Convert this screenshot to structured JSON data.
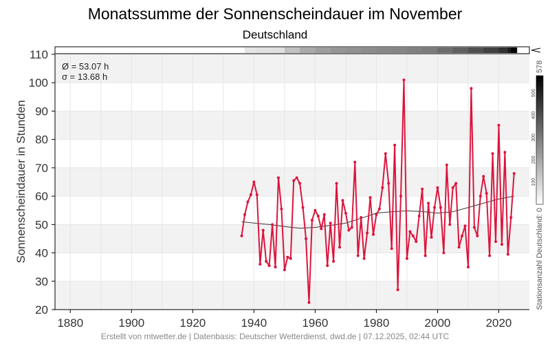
{
  "title": "Monatssumme der Sonnenscheindauer im November",
  "subtitle": "Deutschland",
  "footer": "Erstellt von mtwetter.de | Datenbasis: Deutscher Wetterdienst, dwd.de | 07.12.2025, 02:44 UTC",
  "stats": {
    "mean": "Ø = 53.07 h",
    "sd": "σ = 13.68 h"
  },
  "colors": {
    "series": "#dc143c",
    "trend": "#333333",
    "band": "#f2f2f2",
    "grid": "#e6e6e6"
  },
  "station_bar": {
    "label": "Stationsanzahl Deutschland: 0",
    "max_label": "578",
    "ticks": [
      100,
      200,
      300,
      400,
      500
    ],
    "range": [
      0,
      578
    ],
    "counts": [
      [
        1937,
        60
      ],
      [
        1941,
        65
      ],
      [
        1946,
        70
      ],
      [
        1950,
        140
      ],
      [
        1955,
        190
      ],
      [
        1960,
        220
      ],
      [
        1965,
        240
      ],
      [
        1970,
        250
      ],
      [
        1975,
        260
      ],
      [
        1980,
        270
      ],
      [
        1985,
        275
      ],
      [
        1990,
        285
      ],
      [
        1995,
        300
      ],
      [
        2000,
        330
      ],
      [
        2005,
        360
      ],
      [
        2010,
        400
      ],
      [
        2015,
        430
      ],
      [
        2020,
        470
      ],
      [
        2023,
        520
      ],
      [
        2024,
        578
      ],
      [
        2025,
        578
      ]
    ]
  },
  "chart_data": {
    "type": "line",
    "ylabel": "Sonnenscheindauer in Stunden",
    "xlim": [
      1875,
      2030
    ],
    "ylim": [
      20,
      110
    ],
    "x_ticks": [
      1880,
      1900,
      1920,
      1940,
      1960,
      1980,
      2000,
      2020
    ],
    "y_ticks": [
      20,
      30,
      40,
      50,
      60,
      70,
      80,
      90,
      100,
      110
    ],
    "grid": true,
    "series": [
      {
        "x": [
          1936,
          1937,
          1938,
          1939,
          1940,
          1941,
          1942,
          1943,
          1944,
          1945,
          1946,
          1947,
          1948,
          1949,
          1950,
          1951,
          1952,
          1953,
          1954,
          1955,
          1956,
          1957,
          1958,
          1959,
          1960,
          1961,
          1962,
          1963,
          1964,
          1965,
          1966,
          1967,
          1968,
          1969,
          1970,
          1971,
          1972,
          1973,
          1974,
          1975,
          1976,
          1977,
          1978,
          1979,
          1980,
          1981,
          1982,
          1983,
          1984,
          1985,
          1986,
          1987,
          1988,
          1989,
          1990,
          1991,
          1992,
          1993,
          1994,
          1995,
          1996,
          1997,
          1998,
          1999,
          2000,
          2001,
          2002,
          2003,
          2004,
          2005,
          2006,
          2007,
          2008,
          2009,
          2010,
          2011,
          2012,
          2013,
          2014,
          2015,
          2016,
          2017,
          2018,
          2019,
          2020,
          2021,
          2022,
          2023,
          2024,
          2025
        ],
        "values": [
          46,
          53.5,
          58,
          60.5,
          65,
          60.5,
          36,
          48,
          37,
          35.5,
          50,
          35,
          66.5,
          55.5,
          34,
          38.5,
          38,
          65.5,
          66.5,
          64.5,
          56,
          45,
          22.5,
          51.5,
          55,
          53,
          48.5,
          53.5,
          35.5,
          50.5,
          37,
          64.5,
          42,
          58.5,
          54,
          48,
          49,
          72,
          39,
          52.5,
          38,
          47,
          59.5,
          46.5,
          53.5,
          55.5,
          63,
          75,
          64.5,
          41.5,
          78,
          27,
          60,
          101,
          38,
          47.5,
          46,
          44,
          53,
          62.5,
          39,
          57.5,
          45.5,
          56,
          63,
          56,
          40,
          71,
          50,
          63,
          64.5,
          42,
          46,
          49.5,
          35,
          98,
          49,
          46,
          60,
          67,
          61,
          39,
          75,
          44,
          85,
          43,
          75.5,
          39.5,
          52.5,
          68
        ]
      },
      {
        "name": "Trend",
        "x": [
          1936,
          1940,
          1945,
          1950,
          1955,
          1960,
          1965,
          1970,
          1975,
          1980,
          1985,
          1990,
          1995,
          2000,
          2005,
          2010,
          2015,
          2020,
          2025
        ],
        "values": [
          51,
          50.5,
          50,
          49.3,
          48.7,
          49,
          49.7,
          50.5,
          52.2,
          54,
          54.5,
          54.8,
          54.6,
          54,
          54.5,
          56,
          57.5,
          59,
          60
        ]
      }
    ]
  }
}
